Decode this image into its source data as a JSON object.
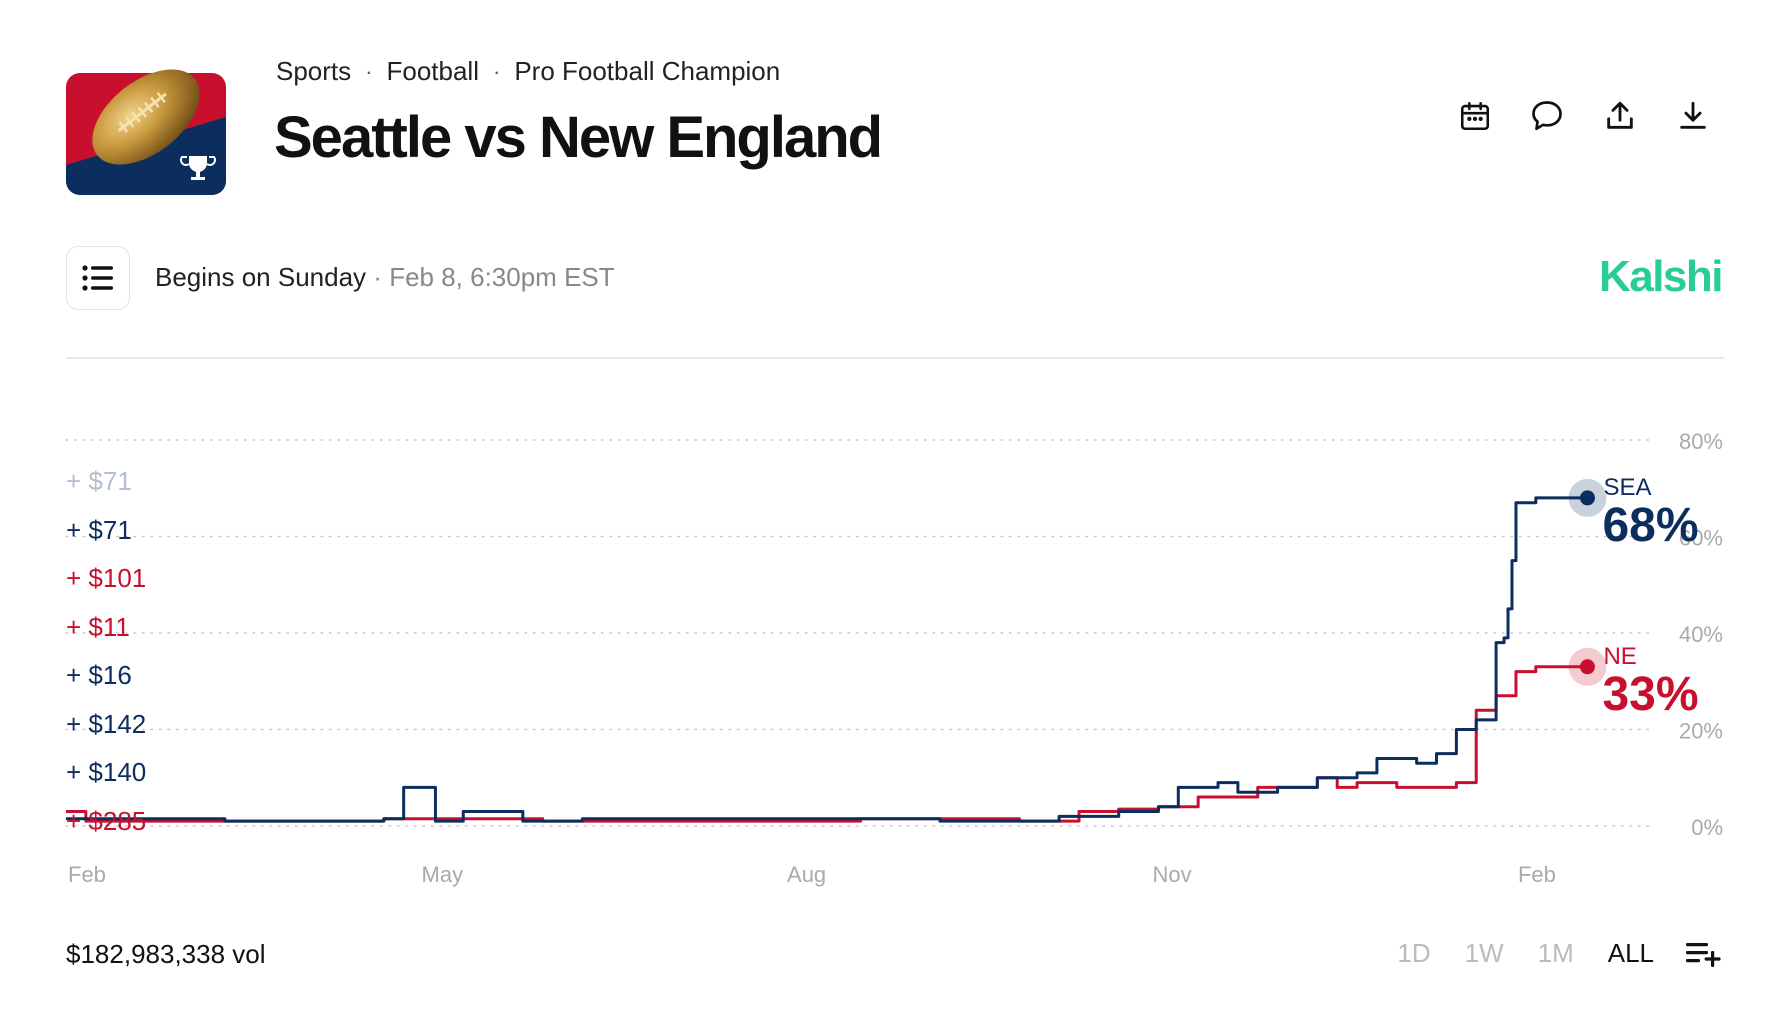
{
  "header": {
    "breadcrumb": [
      "Sports",
      "Football",
      "Pro Football Champion"
    ],
    "title": "Seattle vs New England"
  },
  "toolbar": [
    "calendar-icon",
    "comment-icon",
    "share-icon",
    "download-icon"
  ],
  "schedule": {
    "begins": "Begins on Sunday",
    "separator": "·",
    "datetime": "Feb 8, 6:30pm EST"
  },
  "brand": {
    "name": "Kalshi",
    "color": "#28cc95"
  },
  "amounts": [
    {
      "text": "+ $71",
      "team": "SEA",
      "faded": true
    },
    {
      "text": "+ $71",
      "team": "SEA",
      "faded": false
    },
    {
      "text": "+ $101",
      "team": "NE",
      "faded": false
    },
    {
      "text": "+ $11",
      "team": "NE",
      "faded": false
    },
    {
      "text": "+ $16",
      "team": "SEA",
      "faded": false
    },
    {
      "text": "+ $142",
      "team": "SEA",
      "faded": false
    },
    {
      "text": "+ $140",
      "team": "SEA",
      "faded": false
    },
    {
      "text": "+ $285",
      "team": "NE",
      "faded": false
    }
  ],
  "colors": {
    "SEA": "#0b2e5e",
    "NE": "#c8102e",
    "faded": "#b3bfd0"
  },
  "chart_data": {
    "type": "line",
    "y_ticks": [
      "80%",
      "60%",
      "40%",
      "20%",
      "0%"
    ],
    "ylim": [
      0,
      80
    ],
    "x_ticks": [
      {
        "label": "Feb",
        "t": 0
      },
      {
        "label": "May",
        "t": 89
      },
      {
        "label": "Aug",
        "t": 181
      },
      {
        "label": "Nov",
        "t": 273
      },
      {
        "label": "Feb",
        "t": 365
      }
    ],
    "xlim": [
      0,
      400
    ],
    "series": [
      {
        "name": "SEA",
        "color": "#0b2e5e",
        "current_label": "68%",
        "points": [
          [
            0,
            1.5
          ],
          [
            20,
            1.5
          ],
          [
            40,
            1
          ],
          [
            80,
            1.5
          ],
          [
            85,
            8
          ],
          [
            90,
            8
          ],
          [
            93,
            1
          ],
          [
            100,
            3
          ],
          [
            110,
            3
          ],
          [
            115,
            1
          ],
          [
            130,
            1.5
          ],
          [
            180,
            1.5
          ],
          [
            200,
            1.5
          ],
          [
            220,
            1
          ],
          [
            250,
            2
          ],
          [
            265,
            3
          ],
          [
            275,
            4
          ],
          [
            280,
            8
          ],
          [
            290,
            9
          ],
          [
            295,
            7
          ],
          [
            305,
            8
          ],
          [
            315,
            10
          ],
          [
            325,
            11
          ],
          [
            330,
            14
          ],
          [
            340,
            13
          ],
          [
            345,
            15
          ],
          [
            350,
            20
          ],
          [
            355,
            22
          ],
          [
            360,
            38
          ],
          [
            362,
            39
          ],
          [
            363,
            45
          ],
          [
            364,
            55
          ],
          [
            365,
            67
          ],
          [
            370,
            68
          ],
          [
            383,
            68
          ]
        ]
      },
      {
        "name": "NE",
        "color": "#c8102e",
        "current_label": "33%",
        "points": [
          [
            0,
            3
          ],
          [
            5,
            1
          ],
          [
            40,
            1
          ],
          [
            80,
            1.5
          ],
          [
            120,
            1
          ],
          [
            160,
            1
          ],
          [
            200,
            1.5
          ],
          [
            240,
            1
          ],
          [
            250,
            1
          ],
          [
            255,
            3
          ],
          [
            265,
            3.5
          ],
          [
            275,
            4
          ],
          [
            285,
            6
          ],
          [
            300,
            8
          ],
          [
            315,
            10
          ],
          [
            320,
            8
          ],
          [
            325,
            9
          ],
          [
            335,
            8
          ],
          [
            350,
            9
          ],
          [
            355,
            24
          ],
          [
            360,
            27
          ],
          [
            365,
            32
          ],
          [
            370,
            33
          ],
          [
            383,
            33
          ]
        ]
      }
    ]
  },
  "footer": {
    "volume": "$182,983,338 vol",
    "ranges": [
      "1D",
      "1W",
      "1M",
      "ALL"
    ],
    "active_range": "ALL"
  }
}
